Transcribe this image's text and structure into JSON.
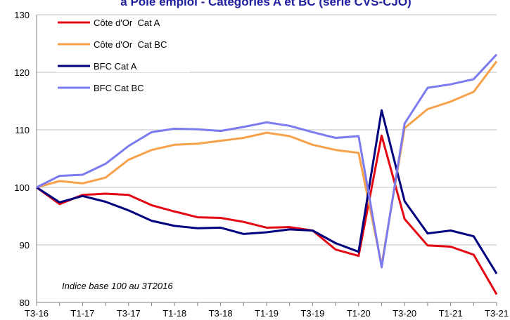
{
  "chart_data": {
    "type": "line",
    "title": "à Pôle emploi - Catégories A et BC (série CVS-CJO)",
    "annotation": "Indice base 100 au 3T2016",
    "categories": [
      "T3-16",
      null,
      "T1-17",
      null,
      "T3-17",
      null,
      "T1-18",
      null,
      "T3-18",
      null,
      "T1-19",
      null,
      "T3-19",
      null,
      "T1-20",
      null,
      "T3-20",
      null,
      "T1-21",
      null,
      "T3-21"
    ],
    "series": [
      {
        "name": "Côte d'Or  Cat A",
        "color": "#e30613",
        "values": [
          100,
          97.1,
          98.7,
          98.9,
          98.7,
          96.9,
          95.8,
          94.8,
          94.7,
          94.0,
          93.0,
          93.1,
          92.5,
          89.2,
          88.1,
          109.0,
          94.5,
          89.9,
          89.7,
          88.3,
          81.4
        ]
      },
      {
        "name": "Côte d'Or  Cat BC",
        "color": "#f7a24b",
        "values": [
          100,
          101.1,
          100.7,
          101.7,
          104.8,
          106.5,
          107.4,
          107.6,
          108.1,
          108.6,
          109.5,
          108.9,
          107.4,
          106.5,
          106.0,
          86.5,
          110.3,
          113.6,
          114.9,
          116.6,
          121.9
        ]
      },
      {
        "name": "BFC Cat A",
        "color": "#00007f",
        "values": [
          100,
          97.4,
          98.5,
          97.5,
          96.0,
          94.2,
          93.3,
          92.9,
          93.0,
          91.9,
          92.2,
          92.7,
          92.5,
          90.3,
          88.8,
          113.4,
          97.6,
          92.0,
          92.5,
          91.5,
          85.0
        ]
      },
      {
        "name": "BFC Cat BC",
        "color": "#7b7bef",
        "values": [
          100,
          102.0,
          102.2,
          104.1,
          107.2,
          109.6,
          110.2,
          110.1,
          109.8,
          110.5,
          111.3,
          110.7,
          109.6,
          108.6,
          108.9,
          86.1,
          111.1,
          117.3,
          117.9,
          118.8,
          123.1
        ]
      }
    ],
    "ylim": [
      80,
      130
    ],
    "yticks": [
      80,
      90,
      100,
      110,
      120,
      130
    ],
    "grid": true,
    "legend": "top-left"
  }
}
